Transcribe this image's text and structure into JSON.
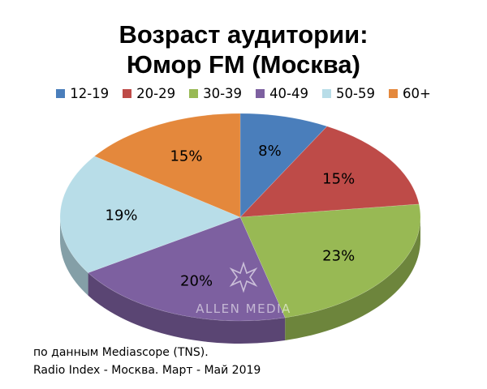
{
  "chart_data": {
    "type": "pie",
    "title_lines": [
      "Возраст аудитории:",
      "Юмор FM (Москва)"
    ],
    "categories": [
      "12-19",
      "20-29",
      "30-39",
      "40-49",
      "50-59",
      "60+"
    ],
    "values": [
      8,
      15,
      23,
      20,
      19,
      15
    ],
    "value_labels": [
      "8%",
      "15%",
      "23%",
      "20%",
      "19%",
      "15%"
    ],
    "colors": [
      "#4a7ebb",
      "#be4b48",
      "#98b954",
      "#7d60a0",
      "#b8dde8",
      "#e4883c"
    ],
    "legend_position": "top",
    "style": "3d"
  },
  "source_lines": [
    "по данным Mediascope (TNS).",
    "Radio Index - Москва. Март - Май 2019"
  ],
  "watermark": {
    "text": "ALLEN MEDIA",
    "icon": "star-burst-icon"
  }
}
